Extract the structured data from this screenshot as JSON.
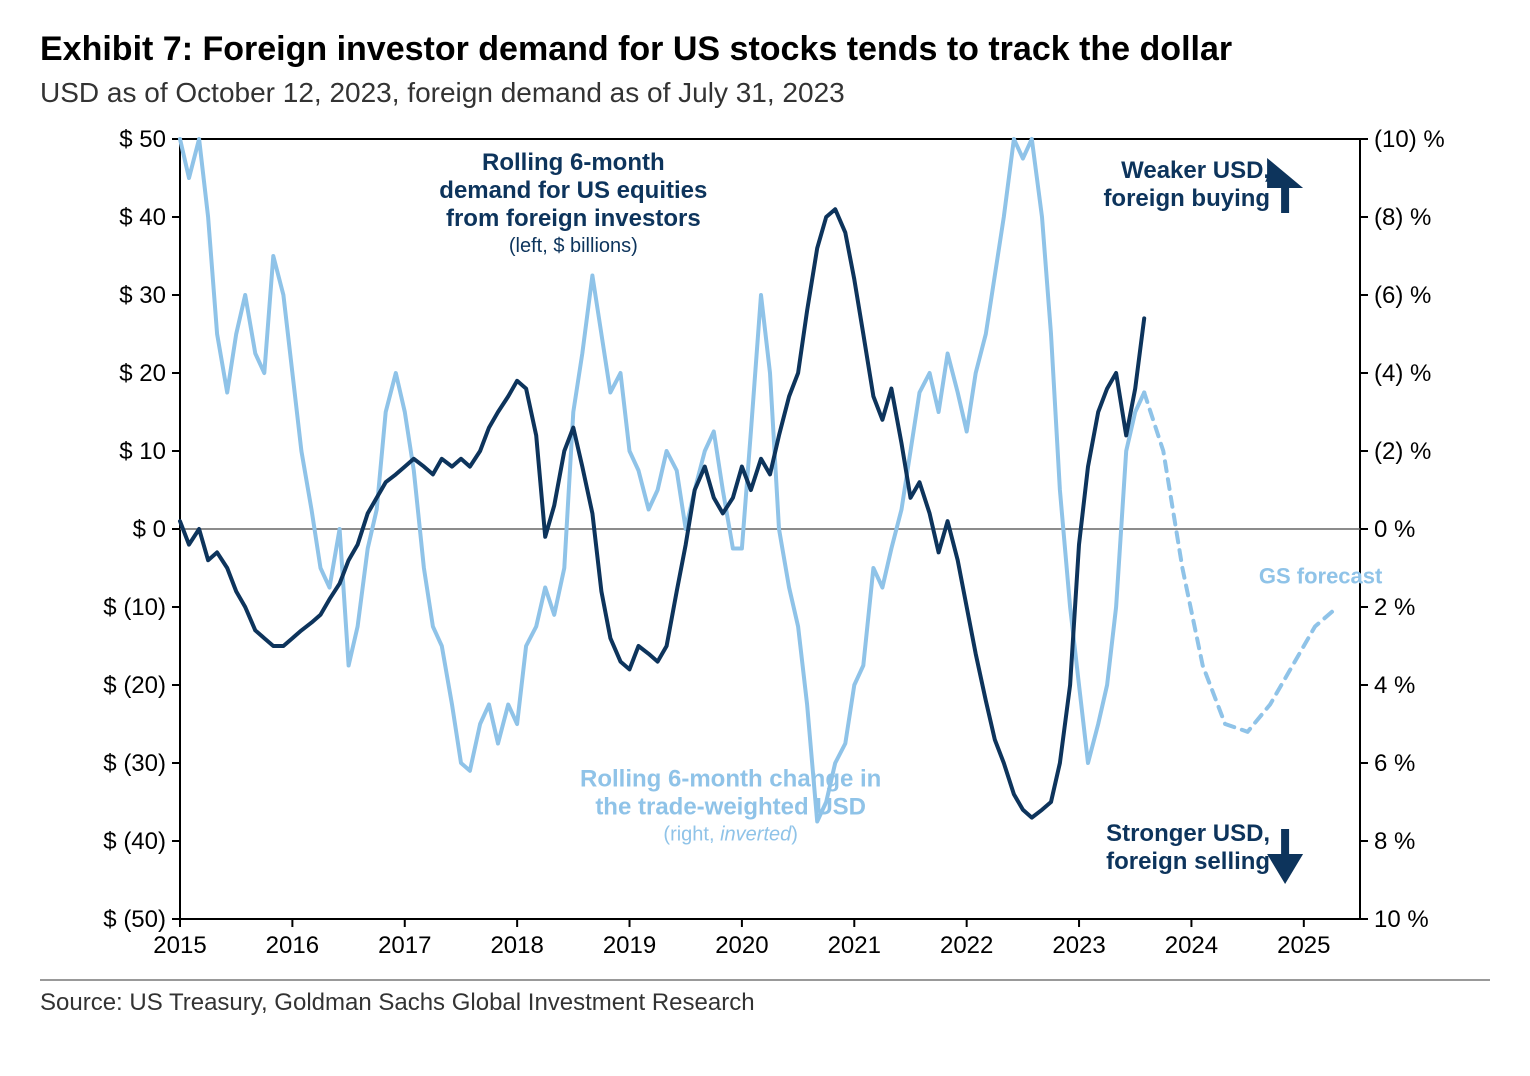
{
  "header": {
    "title": "Exhibit 7: Foreign investor demand for US stocks tends to track the dollar",
    "subtitle": "USD as of October 12, 2023, foreign demand as of July 31, 2023"
  },
  "source": "Source: US Treasury, Goldman Sachs Global Investment Research",
  "chart": {
    "type": "line-dual-axis",
    "background_color": "#ffffff",
    "plot_border_color": "#000000",
    "grid_zero_color": "#666666",
    "x_axis": {
      "min": 2015,
      "max": 2025.5,
      "ticks": [
        2015,
        2016,
        2017,
        2018,
        2019,
        2020,
        2021,
        2022,
        2023,
        2024,
        2025
      ],
      "tick_labels": [
        "2015",
        "2016",
        "2017",
        "2018",
        "2019",
        "2020",
        "2021",
        "2022",
        "2023",
        "2024",
        "2025"
      ],
      "label_fontsize": 24
    },
    "y_left": {
      "min": -50,
      "max": 50,
      "ticks": [
        -50,
        -40,
        -30,
        -20,
        -10,
        0,
        10,
        20,
        30,
        40,
        50
      ],
      "tick_labels": [
        "$ (50)",
        "$ (40)",
        "$ (30)",
        "$ (20)",
        "$ (10)",
        "$ 0",
        "$ 10",
        "$ 20",
        "$ 30",
        "$ 40",
        "$ 50"
      ],
      "label_fontsize": 24
    },
    "y_right": {
      "min": -10,
      "max": 10,
      "inverted": true,
      "ticks": [
        10,
        8,
        6,
        4,
        2,
        0,
        -2,
        -4,
        -6,
        -8,
        -10
      ],
      "tick_labels": [
        "10 %",
        "8 %",
        "6 %",
        "4 %",
        "2 %",
        "0 %",
        "(2) %",
        "(4) %",
        "(6) %",
        "(8) %",
        "(10) %"
      ],
      "label_fontsize": 24
    },
    "series": {
      "demand": {
        "label_line1": "Rolling 6-month",
        "label_line2": "demand for US equities",
        "label_line3": "from foreign investors",
        "label_sub": "(left, $ billions)",
        "color": "#0d345c",
        "line_width": 4,
        "label_fontsize": 24,
        "sublabel_fontsize": 20,
        "data": [
          [
            2015.0,
            1
          ],
          [
            2015.08,
            -2
          ],
          [
            2015.17,
            0
          ],
          [
            2015.25,
            -4
          ],
          [
            2015.33,
            -3
          ],
          [
            2015.42,
            -5
          ],
          [
            2015.5,
            -8
          ],
          [
            2015.58,
            -10
          ],
          [
            2015.67,
            -13
          ],
          [
            2015.75,
            -14
          ],
          [
            2015.83,
            -15
          ],
          [
            2015.92,
            -15
          ],
          [
            2016.0,
            -14
          ],
          [
            2016.08,
            -13
          ],
          [
            2016.17,
            -12
          ],
          [
            2016.25,
            -11
          ],
          [
            2016.33,
            -9
          ],
          [
            2016.42,
            -7
          ],
          [
            2016.5,
            -4
          ],
          [
            2016.58,
            -2
          ],
          [
            2016.67,
            2
          ],
          [
            2016.75,
            4
          ],
          [
            2016.83,
            6
          ],
          [
            2016.92,
            7
          ],
          [
            2017.0,
            8
          ],
          [
            2017.08,
            9
          ],
          [
            2017.17,
            8
          ],
          [
            2017.25,
            7
          ],
          [
            2017.33,
            9
          ],
          [
            2017.42,
            8
          ],
          [
            2017.5,
            9
          ],
          [
            2017.58,
            8
          ],
          [
            2017.67,
            10
          ],
          [
            2017.75,
            13
          ],
          [
            2017.83,
            15
          ],
          [
            2017.92,
            17
          ],
          [
            2018.0,
            19
          ],
          [
            2018.08,
            18
          ],
          [
            2018.17,
            12
          ],
          [
            2018.25,
            -1
          ],
          [
            2018.33,
            3
          ],
          [
            2018.42,
            10
          ],
          [
            2018.5,
            13
          ],
          [
            2018.58,
            8
          ],
          [
            2018.67,
            2
          ],
          [
            2018.75,
            -8
          ],
          [
            2018.83,
            -14
          ],
          [
            2018.92,
            -17
          ],
          [
            2019.0,
            -18
          ],
          [
            2019.08,
            -15
          ],
          [
            2019.17,
            -16
          ],
          [
            2019.25,
            -17
          ],
          [
            2019.33,
            -15
          ],
          [
            2019.42,
            -8
          ],
          [
            2019.5,
            -2
          ],
          [
            2019.58,
            5
          ],
          [
            2019.67,
            8
          ],
          [
            2019.75,
            4
          ],
          [
            2019.83,
            2
          ],
          [
            2019.92,
            4
          ],
          [
            2020.0,
            8
          ],
          [
            2020.08,
            5
          ],
          [
            2020.17,
            9
          ],
          [
            2020.25,
            7
          ],
          [
            2020.33,
            12
          ],
          [
            2020.42,
            17
          ],
          [
            2020.5,
            20
          ],
          [
            2020.58,
            28
          ],
          [
            2020.67,
            36
          ],
          [
            2020.75,
            40
          ],
          [
            2020.83,
            41
          ],
          [
            2020.92,
            38
          ],
          [
            2021.0,
            32
          ],
          [
            2021.08,
            25
          ],
          [
            2021.17,
            17
          ],
          [
            2021.25,
            14
          ],
          [
            2021.33,
            18
          ],
          [
            2021.42,
            11
          ],
          [
            2021.5,
            4
          ],
          [
            2021.58,
            6
          ],
          [
            2021.67,
            2
          ],
          [
            2021.75,
            -3
          ],
          [
            2021.83,
            1
          ],
          [
            2021.92,
            -4
          ],
          [
            2022.0,
            -10
          ],
          [
            2022.08,
            -16
          ],
          [
            2022.17,
            -22
          ],
          [
            2022.25,
            -27
          ],
          [
            2022.33,
            -30
          ],
          [
            2022.42,
            -34
          ],
          [
            2022.5,
            -36
          ],
          [
            2022.58,
            -37
          ],
          [
            2022.67,
            -36
          ],
          [
            2022.75,
            -35
          ],
          [
            2022.83,
            -30
          ],
          [
            2022.92,
            -20
          ],
          [
            2023.0,
            -2
          ],
          [
            2023.08,
            8
          ],
          [
            2023.17,
            15
          ],
          [
            2023.25,
            18
          ],
          [
            2023.33,
            20
          ],
          [
            2023.42,
            12
          ],
          [
            2023.5,
            18
          ],
          [
            2023.58,
            27
          ]
        ]
      },
      "usd": {
        "label_line1": "Rolling 6-month change in",
        "label_line2": "the trade-weighted USD",
        "label_sub_prefix": "(right, ",
        "label_sub_italic": "inverted",
        "label_sub_suffix": ")",
        "color": "#8fc3e8",
        "line_width": 4,
        "label_fontsize": 24,
        "sublabel_fontsize": 20,
        "data": [
          [
            2015.0,
            -10.0
          ],
          [
            2015.08,
            -9.0
          ],
          [
            2015.17,
            -10.0
          ],
          [
            2015.25,
            -8.0
          ],
          [
            2015.33,
            -5.0
          ],
          [
            2015.42,
            -3.5
          ],
          [
            2015.5,
            -5.0
          ],
          [
            2015.58,
            -6.0
          ],
          [
            2015.67,
            -4.5
          ],
          [
            2015.75,
            -4.0
          ],
          [
            2015.83,
            -7.0
          ],
          [
            2015.92,
            -6.0
          ],
          [
            2016.0,
            -4.0
          ],
          [
            2016.08,
            -2.0
          ],
          [
            2016.17,
            -0.5
          ],
          [
            2016.25,
            1.0
          ],
          [
            2016.33,
            1.5
          ],
          [
            2016.42,
            0.0
          ],
          [
            2016.5,
            3.5
          ],
          [
            2016.58,
            2.5
          ],
          [
            2016.67,
            0.5
          ],
          [
            2016.75,
            -0.5
          ],
          [
            2016.83,
            -3.0
          ],
          [
            2016.92,
            -4.0
          ],
          [
            2017.0,
            -3.0
          ],
          [
            2017.08,
            -1.5
          ],
          [
            2017.17,
            1.0
          ],
          [
            2017.25,
            2.5
          ],
          [
            2017.33,
            3.0
          ],
          [
            2017.42,
            4.5
          ],
          [
            2017.5,
            6.0
          ],
          [
            2017.58,
            6.2
          ],
          [
            2017.67,
            5.0
          ],
          [
            2017.75,
            4.5
          ],
          [
            2017.83,
            5.5
          ],
          [
            2017.92,
            4.5
          ],
          [
            2018.0,
            5.0
          ],
          [
            2018.08,
            3.0
          ],
          [
            2018.17,
            2.5
          ],
          [
            2018.25,
            1.5
          ],
          [
            2018.33,
            2.2
          ],
          [
            2018.42,
            1.0
          ],
          [
            2018.5,
            -3.0
          ],
          [
            2018.58,
            -4.5
          ],
          [
            2018.67,
            -6.5
          ],
          [
            2018.75,
            -5.0
          ],
          [
            2018.83,
            -3.5
          ],
          [
            2018.92,
            -4.0
          ],
          [
            2019.0,
            -2.0
          ],
          [
            2019.08,
            -1.5
          ],
          [
            2019.17,
            -0.5
          ],
          [
            2019.25,
            -1.0
          ],
          [
            2019.33,
            -2.0
          ],
          [
            2019.42,
            -1.5
          ],
          [
            2019.5,
            0.0
          ],
          [
            2019.58,
            -1.0
          ],
          [
            2019.67,
            -2.0
          ],
          [
            2019.75,
            -2.5
          ],
          [
            2019.83,
            -1.0
          ],
          [
            2019.92,
            0.5
          ],
          [
            2020.0,
            0.5
          ],
          [
            2020.08,
            -2.5
          ],
          [
            2020.17,
            -6.0
          ],
          [
            2020.25,
            -4.0
          ],
          [
            2020.33,
            0.0
          ],
          [
            2020.42,
            1.5
          ],
          [
            2020.5,
            2.5
          ],
          [
            2020.58,
            4.5
          ],
          [
            2020.67,
            7.5
          ],
          [
            2020.75,
            7.0
          ],
          [
            2020.83,
            6.0
          ],
          [
            2020.92,
            5.5
          ],
          [
            2021.0,
            4.0
          ],
          [
            2021.08,
            3.5
          ],
          [
            2021.17,
            1.0
          ],
          [
            2021.25,
            1.5
          ],
          [
            2021.33,
            0.5
          ],
          [
            2021.42,
            -0.5
          ],
          [
            2021.5,
            -2.0
          ],
          [
            2021.58,
            -3.5
          ],
          [
            2021.67,
            -4.0
          ],
          [
            2021.75,
            -3.0
          ],
          [
            2021.83,
            -4.5
          ],
          [
            2021.92,
            -3.5
          ],
          [
            2022.0,
            -2.5
          ],
          [
            2022.08,
            -4.0
          ],
          [
            2022.17,
            -5.0
          ],
          [
            2022.25,
            -6.5
          ],
          [
            2022.33,
            -8.0
          ],
          [
            2022.42,
            -10.0
          ],
          [
            2022.5,
            -9.5
          ],
          [
            2022.58,
            -10.0
          ],
          [
            2022.67,
            -8.0
          ],
          [
            2022.75,
            -5.0
          ],
          [
            2022.83,
            -1.0
          ],
          [
            2022.92,
            2.0
          ],
          [
            2023.0,
            4.0
          ],
          [
            2023.08,
            6.0
          ],
          [
            2023.17,
            5.0
          ],
          [
            2023.25,
            4.0
          ],
          [
            2023.33,
            2.0
          ],
          [
            2023.42,
            -2.0
          ],
          [
            2023.5,
            -3.0
          ],
          [
            2023.58,
            -3.5
          ]
        ]
      },
      "usd_forecast": {
        "label": "GS forecast",
        "color": "#8fc3e8",
        "line_width": 4,
        "dash": "10 8",
        "label_fontsize": 22,
        "data": [
          [
            2023.58,
            -3.5
          ],
          [
            2023.75,
            -2.0
          ],
          [
            2023.92,
            1.0
          ],
          [
            2024.1,
            3.5
          ],
          [
            2024.3,
            5.0
          ],
          [
            2024.5,
            5.2
          ],
          [
            2024.7,
            4.5
          ],
          [
            2024.9,
            3.5
          ],
          [
            2025.1,
            2.5
          ],
          [
            2025.3,
            2.0
          ]
        ]
      }
    },
    "annotations": {
      "top_arrow": {
        "line1": "Weaker USD,",
        "line2": "foreign buying",
        "color": "#0d345c",
        "fontsize": 24
      },
      "bottom_arrow": {
        "line1": "Stronger USD,",
        "line2": "foreign selling",
        "color": "#0d345c",
        "fontsize": 24
      }
    }
  }
}
